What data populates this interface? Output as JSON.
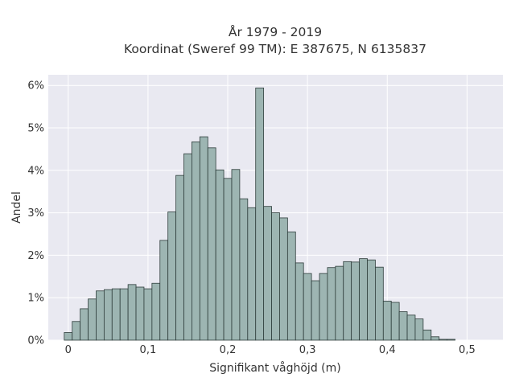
{
  "chart_data": {
    "type": "bar",
    "title_lines": [
      "År 1979 - 2019",
      "Koordinat (Sweref 99 TM): E 387675, N 6135837"
    ],
    "xlabel": "Signifikant våghöjd (m)",
    "ylabel": "Andel",
    "x_bin_start": -0.005,
    "x_bin_width": 0.01,
    "xlim": [
      -0.025,
      0.545
    ],
    "ylim": [
      0,
      0.0625
    ],
    "x_ticks": [
      0,
      0.1,
      0.2,
      0.3,
      0.4,
      0.5
    ],
    "x_tick_labels": [
      "0",
      "0,1",
      "0,2",
      "0,3",
      "0,4",
      "0,5"
    ],
    "y_ticks": [
      0,
      0.01,
      0.02,
      0.03,
      0.04,
      0.05,
      0.06
    ],
    "y_tick_labels": [
      "0%",
      "1%",
      "2%",
      "3%",
      "4%",
      "5%",
      "6%"
    ],
    "values": [
      0.0018,
      0.0044,
      0.0074,
      0.0097,
      0.0116,
      0.0119,
      0.0121,
      0.0121,
      0.0131,
      0.0125,
      0.0121,
      0.0134,
      0.0235,
      0.0302,
      0.0388,
      0.0439,
      0.0467,
      0.0479,
      0.0453,
      0.0401,
      0.0381,
      0.0402,
      0.0333,
      0.0312,
      0.0594,
      0.0315,
      0.03,
      0.0288,
      0.0255,
      0.0182,
      0.0157,
      0.014,
      0.0157,
      0.0171,
      0.0174,
      0.0185,
      0.0184,
      0.0192,
      0.0189,
      0.0172,
      0.0092,
      0.0089,
      0.0067,
      0.0059,
      0.005,
      0.0024,
      0.0008,
      0.0002,
      0.0002
    ],
    "grid": true,
    "colors": {
      "plot_bg": "#e9e9f1",
      "bar_fill": "#9db5b2",
      "bar_stroke": "#2e3d3b",
      "grid": "#ffffff",
      "text": "#333333"
    }
  }
}
